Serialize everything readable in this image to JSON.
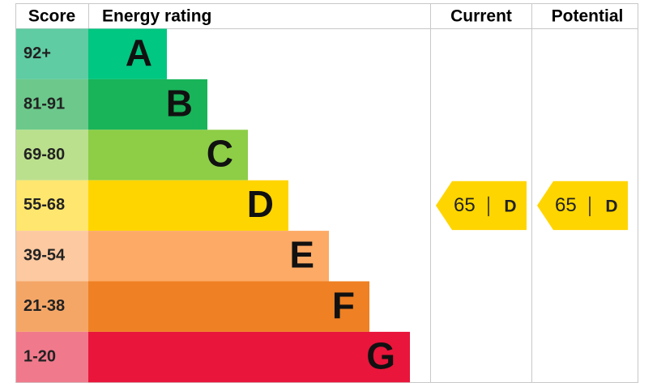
{
  "chart_data": {
    "type": "energy-rating",
    "headers": {
      "score": "Score",
      "rating": "Energy rating",
      "current": "Current",
      "potential": "Potential"
    },
    "bands": [
      {
        "score": "92+",
        "letter": "A",
        "color": "#00c781",
        "score_color": "#5fcca3"
      },
      {
        "score": "81-91",
        "letter": "B",
        "color": "#19b459",
        "score_color": "#6cc98b"
      },
      {
        "score": "69-80",
        "letter": "C",
        "color": "#8dce46",
        "score_color": "#bbe08d"
      },
      {
        "score": "55-68",
        "letter": "D",
        "color": "#ffd500",
        "score_color": "#ffe66e"
      },
      {
        "score": "39-54",
        "letter": "E",
        "color": "#fcaa65",
        "score_color": "#fcc9a0"
      },
      {
        "score": "21-38",
        "letter": "F",
        "color": "#ef8023",
        "score_color": "#f4a667"
      },
      {
        "score": "1-20",
        "letter": "G",
        "color": "#e9153b",
        "score_color": "#f07a8c"
      }
    ],
    "current": {
      "value": 65,
      "rating": "D"
    },
    "potential": {
      "value": 65,
      "rating": "D"
    }
  }
}
